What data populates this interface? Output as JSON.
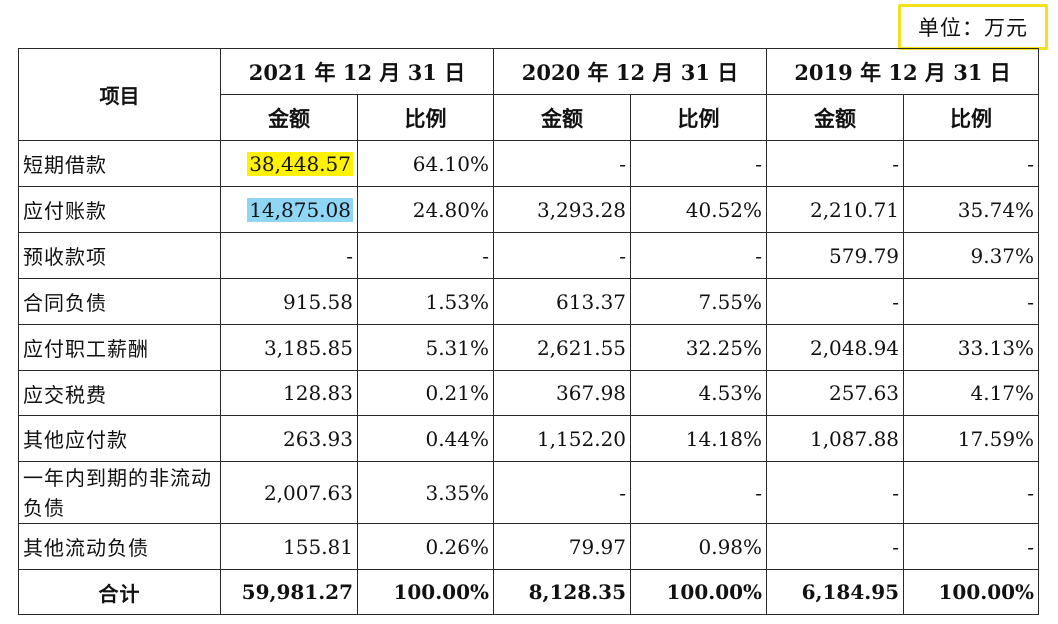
{
  "unit_label": "单位：万元",
  "header": {
    "item_label": "项目",
    "years": [
      "2021 年 12 月 31 日",
      "2020 年 12 月 31 日",
      "2019 年 12 月 31 日"
    ],
    "amount_label": "金额",
    "ratio_label": "比例"
  },
  "highlight_colors": {
    "yellow": "#fff200",
    "blue": "#8fd6f5",
    "unit_border": "#f2e11c"
  },
  "rows": [
    {
      "label": "短期借款",
      "cells": [
        "38,448.57",
        "64.10%",
        "-",
        "-",
        "-",
        "-"
      ]
    },
    {
      "label": "应付账款",
      "cells": [
        "14,875.08",
        "24.80%",
        "3,293.28",
        "40.52%",
        "2,210.71",
        "35.74%"
      ]
    },
    {
      "label": "预收款项",
      "cells": [
        "-",
        "-",
        "-",
        "-",
        "579.79",
        "9.37%"
      ]
    },
    {
      "label": "合同负债",
      "cells": [
        "915.58",
        "1.53%",
        "613.37",
        "7.55%",
        "-",
        "-"
      ]
    },
    {
      "label": "应付职工薪酬",
      "cells": [
        "3,185.85",
        "5.31%",
        "2,621.55",
        "32.25%",
        "2,048.94",
        "33.13%"
      ]
    },
    {
      "label": "应交税费",
      "cells": [
        "128.83",
        "0.21%",
        "367.98",
        "4.53%",
        "257.63",
        "4.17%"
      ]
    },
    {
      "label": "其他应付款",
      "cells": [
        "263.93",
        "0.44%",
        "1,152.20",
        "14.18%",
        "1,087.88",
        "17.59%"
      ]
    },
    {
      "label": "一年内到期的非流动负债",
      "cells": [
        "2,007.63",
        "3.35%",
        "-",
        "-",
        "-",
        "-"
      ]
    },
    {
      "label": "其他流动负债",
      "cells": [
        "155.81",
        "0.26%",
        "79.97",
        "0.98%",
        "-",
        "-"
      ]
    },
    {
      "label": "合计",
      "cells": [
        "59,981.27",
        "100.00%",
        "8,128.35",
        "100.00%",
        "6,184.95",
        "100.00%"
      ]
    }
  ]
}
